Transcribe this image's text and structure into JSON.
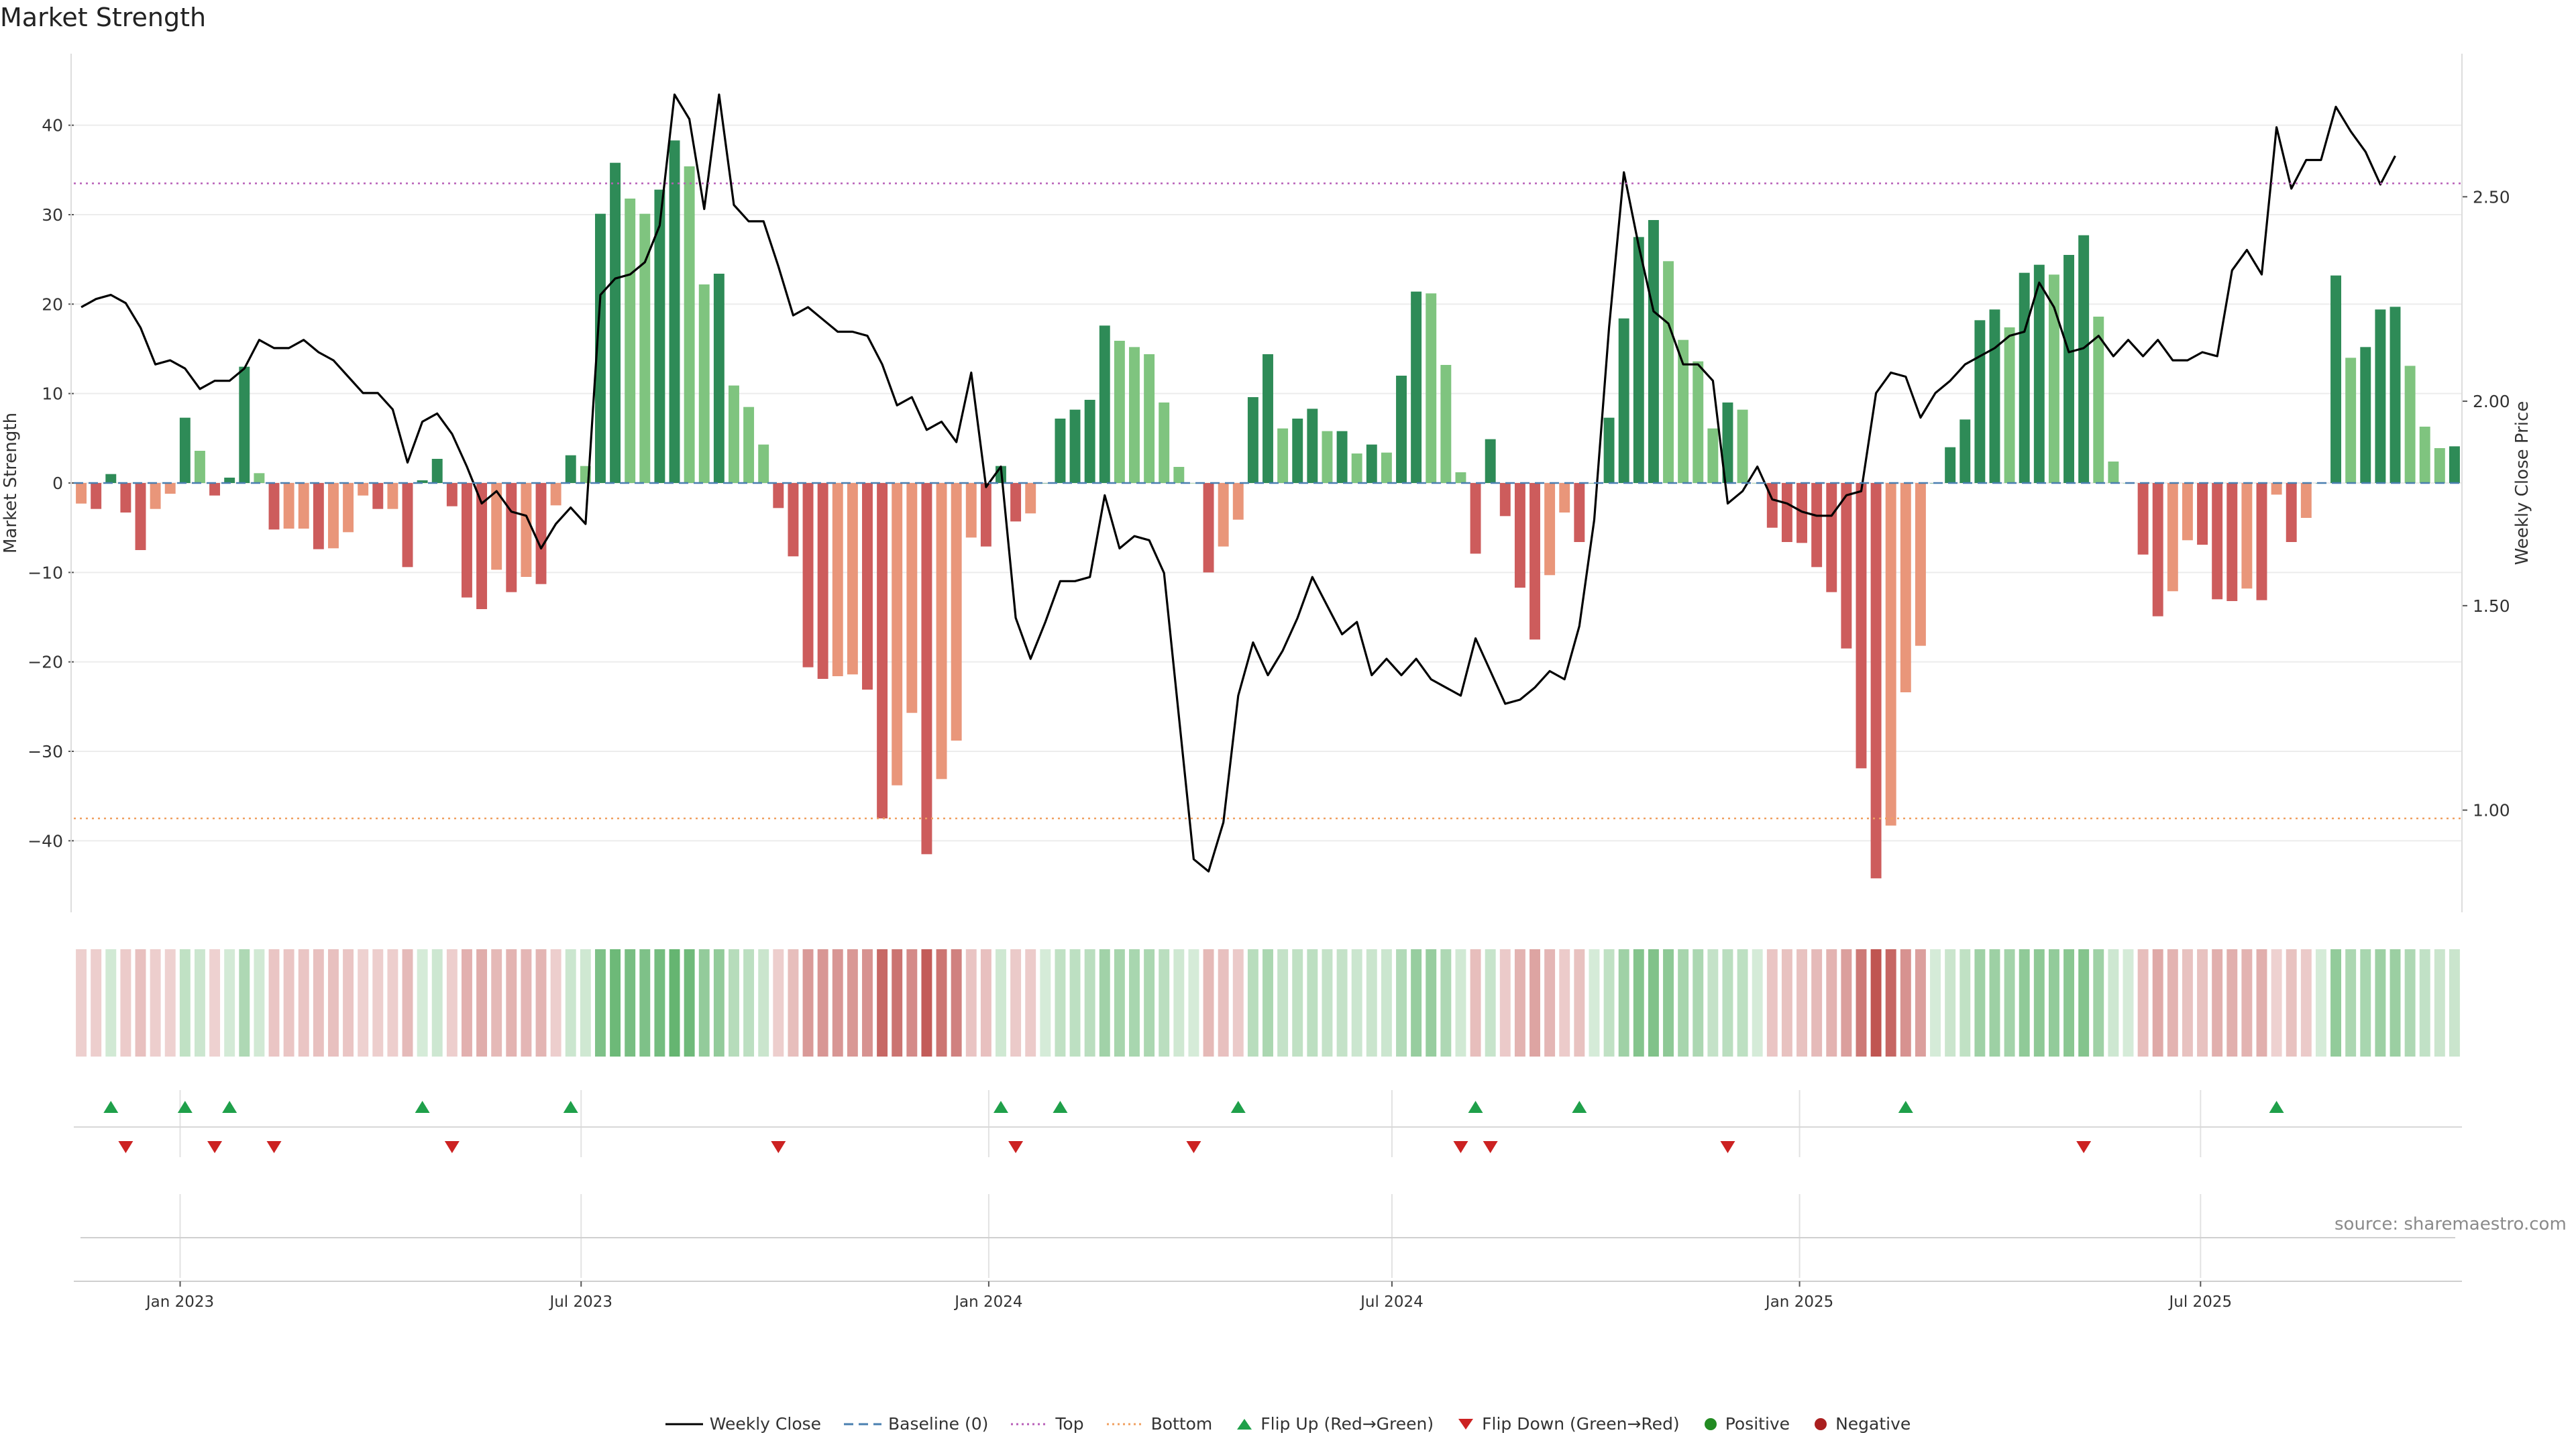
{
  "title": "Market Strength",
  "source": "source: sharemaestro.com",
  "chart_data": {
    "type": "bar",
    "title": "Market Strength",
    "ylabel": "Market Strength",
    "y2label": "Weekly Close Price",
    "ylim": [
      -48,
      48
    ],
    "y2lim": [
      0.75,
      2.85
    ],
    "yticks": [
      40,
      30,
      20,
      10,
      0,
      -10,
      -20,
      -30,
      -40
    ],
    "y2ticks": [
      2.5,
      2.0,
      1.5,
      1.0
    ],
    "y2tick_labels": [
      "2.50",
      "2.00",
      "1.50",
      "1.00"
    ],
    "top_line": 33.5,
    "bottom_line": -37.5,
    "baseline": 0,
    "x_start": "2022-11-14",
    "x_end": "2025-10-27",
    "xtick_labels": [
      "Jan 2023",
      "Jul 2023",
      "Jan 2024",
      "Jul 2024",
      "Jan 2025",
      "Jul 2025"
    ],
    "xtick_dates": [
      "2023-01-01",
      "2023-07-01",
      "2024-01-01",
      "2024-07-01",
      "2025-01-01",
      "2025-07-01"
    ],
    "strength": [
      -2.3,
      -2.9,
      1.0,
      -3.3,
      -7.5,
      -2.9,
      -1.2,
      7.3,
      3.6,
      -1.4,
      0.6,
      13.0,
      1.1,
      -5.2,
      -5.1,
      -5.1,
      -7.4,
      -7.3,
      -5.5,
      -1.4,
      -2.9,
      -2.9,
      -9.4,
      0.3,
      2.7,
      -2.6,
      -12.8,
      -14.1,
      -9.7,
      -12.2,
      -10.5,
      -11.3,
      -2.5,
      3.1,
      1.9,
      30.1,
      35.8,
      31.8,
      30.1,
      32.8,
      38.3,
      35.4,
      22.2,
      23.4,
      10.9,
      8.5,
      4.3,
      -2.8,
      -8.2,
      -20.6,
      -21.9,
      -21.6,
      -21.4,
      -23.1,
      -37.5,
      -33.8,
      -25.7,
      -41.5,
      -33.1,
      -28.8,
      -6.1,
      -7.1,
      1.9,
      -4.3,
      -3.4,
      0,
      7.2,
      8.2,
      9.3,
      17.6,
      15.9,
      15.2,
      14.4,
      9.0,
      1.8,
      0,
      -10.0,
      -7.1,
      -4.1,
      9.6,
      14.4,
      6.1,
      7.2,
      8.3,
      5.8,
      5.8,
      3.3,
      4.3,
      3.4,
      12.0,
      21.4,
      21.2,
      13.2,
      1.2,
      -7.9,
      4.9,
      -3.7,
      -11.7,
      -17.5,
      -10.3,
      -3.3,
      -6.6,
      0,
      7.3,
      18.4,
      27.5,
      29.4,
      24.8,
      16.0,
      13.6,
      6.1,
      9.0,
      8.2,
      0,
      -5.0,
      -6.6,
      -6.7,
      -9.4,
      -12.2,
      -18.5,
      -31.9,
      -44.2,
      -38.3,
      -23.4,
      -18.2,
      0,
      4.0,
      7.1,
      18.2,
      19.4,
      17.4,
      23.5,
      24.4,
      23.3,
      25.5,
      27.7,
      18.6,
      2.4,
      0,
      -8.0,
      -14.9,
      -12.1,
      -6.4,
      -6.9,
      -13.0,
      -13.2,
      -11.8,
      -13.1,
      -1.3,
      -6.6,
      -3.9,
      0,
      23.2,
      14.0,
      15.2,
      19.4,
      19.7,
      13.1,
      6.3,
      3.9,
      4.1
    ],
    "close": [
      2.23,
      2.25,
      2.26,
      2.24,
      2.18,
      2.09,
      2.1,
      2.08,
      2.03,
      2.05,
      2.05,
      2.08,
      2.15,
      2.13,
      2.13,
      2.15,
      2.12,
      2.1,
      2.06,
      2.02,
      2.02,
      1.98,
      1.85,
      1.95,
      1.97,
      1.92,
      1.84,
      1.75,
      1.78,
      1.73,
      1.72,
      1.64,
      1.7,
      1.74,
      1.7,
      2.26,
      2.3,
      2.31,
      2.34,
      2.43,
      2.75,
      2.69,
      2.47,
      2.75,
      2.48,
      2.44,
      2.44,
      2.33,
      2.21,
      2.23,
      2.2,
      2.17,
      2.17,
      2.16,
      2.09,
      1.99,
      2.01,
      1.93,
      1.95,
      1.9,
      2.07,
      1.79,
      1.84,
      1.47,
      1.37,
      1.46,
      1.56,
      1.56,
      1.57,
      1.77,
      1.64,
      1.67,
      1.66,
      1.58,
      1.23,
      0.88,
      0.85,
      0.97,
      1.28,
      1.41,
      1.33,
      1.39,
      1.47,
      1.57,
      1.5,
      1.43,
      1.46,
      1.33,
      1.37,
      1.33,
      1.37,
      1.32,
      1.3,
      1.28,
      1.42,
      1.34,
      1.26,
      1.27,
      1.3,
      1.34,
      1.32,
      1.45,
      1.71,
      2.18,
      2.56,
      2.38,
      2.22,
      2.19,
      2.09,
      2.09,
      2.05,
      1.75,
      1.78,
      1.84,
      1.76,
      1.75,
      1.73,
      1.72,
      1.72,
      1.77,
      1.78,
      2.02,
      2.07,
      2.06,
      1.96,
      2.02,
      2.05,
      2.09,
      2.11,
      2.13,
      2.16,
      2.17,
      2.29,
      2.23,
      2.12,
      2.13,
      2.16,
      2.11,
      2.15,
      2.11,
      2.15,
      2.1,
      2.1,
      2.12,
      2.11,
      2.32,
      2.37,
      2.31,
      2.67,
      2.52,
      2.59,
      2.59,
      2.72,
      2.66,
      2.61,
      2.53,
      2.6
    ],
    "flip_up_weeks": [
      2,
      7,
      10,
      23,
      33,
      62,
      66,
      78,
      94,
      101,
      123,
      148
    ],
    "flip_down_weeks": [
      3,
      9,
      13,
      25,
      47,
      63,
      75,
      93,
      95,
      111,
      135
    ]
  },
  "legend": {
    "weekly_close": "Weekly Close",
    "baseline": "Baseline (0)",
    "top": "Top",
    "bottom": "Bottom",
    "flip_up": "Flip Up (Red→Green)",
    "flip_down": "Flip Down (Green→Red)",
    "positive": "Positive",
    "negative": "Negative"
  },
  "colors": {
    "pos_dark": "#2e8b57",
    "pos_light": "#7fc47f",
    "neg_dark": "#cd5c5c",
    "neg_light": "#e9967a",
    "top_line": "#b85fb8",
    "bottom_line": "#f0a060",
    "baseline": "#4a7fb0",
    "flip_up": "#1fa04a",
    "flip_down": "#cc2222",
    "positive_dot": "#228b22",
    "negative_dot": "#aa1f1f",
    "close_line": "#000000"
  }
}
